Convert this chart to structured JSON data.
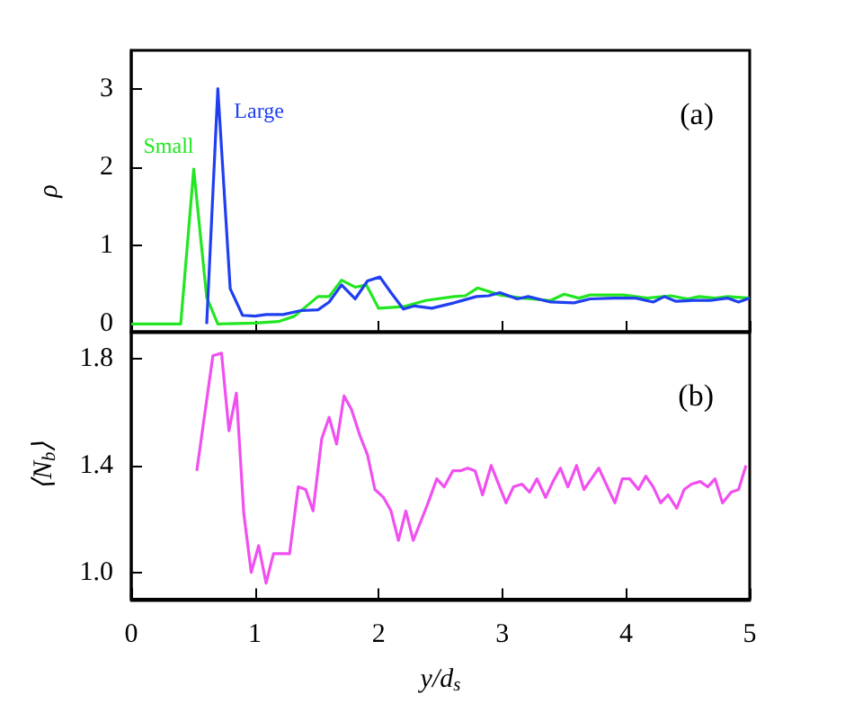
{
  "chart_data": [
    {
      "type": "line",
      "ylabel": "ρ",
      "annotations": [
        "(a)"
      ],
      "xlim": [
        0,
        5
      ],
      "xticks": [
        0,
        1,
        2,
        3,
        4,
        5
      ],
      "ylim": [
        -0.1,
        3.5
      ],
      "yticks": [
        0,
        1,
        2,
        3
      ],
      "tick_labels": "y",
      "grid": false,
      "legend": false,
      "series": [
        {
          "name": "Small",
          "color": "#22e622",
          "x": [
            0,
            0.4,
            0.505,
            0.61,
            0.7,
            1.0,
            1.19,
            1.32,
            1.51,
            1.6,
            1.7,
            1.81,
            1.9,
            2.0,
            2.2,
            2.38,
            2.61,
            2.7,
            2.8,
            2.98,
            3.16,
            3.39,
            3.5,
            3.62,
            3.71,
            3.98,
            4.17,
            4.36,
            4.5,
            4.59,
            4.72,
            4.82,
            5.0
          ],
          "values": [
            0,
            0,
            1.98,
            0.34,
            0,
            0.01,
            0.03,
            0.1,
            0.35,
            0.35,
            0.56,
            0.47,
            0.5,
            0.2,
            0.22,
            0.3,
            0.35,
            0.36,
            0.46,
            0.37,
            0.33,
            0.3,
            0.38,
            0.33,
            0.37,
            0.37,
            0.33,
            0.36,
            0.32,
            0.35,
            0.33,
            0.35,
            0.33
          ]
        },
        {
          "name": "Large",
          "color": "#1f3ff0",
          "x": [
            0.61,
            0.7,
            0.8,
            0.9,
            1.0,
            1.09,
            1.23,
            1.37,
            1.51,
            1.6,
            1.7,
            1.81,
            1.91,
            2.01,
            2.1,
            2.2,
            2.29,
            2.43,
            2.61,
            2.79,
            2.89,
            2.98,
            3.12,
            3.21,
            3.39,
            3.58,
            3.71,
            3.9,
            4.08,
            4.22,
            4.31,
            4.4,
            4.54,
            4.68,
            4.82,
            4.91,
            5.0
          ],
          "values": [
            0,
            3.01,
            0.45,
            0.11,
            0.1,
            0.12,
            0.12,
            0.17,
            0.18,
            0.28,
            0.5,
            0.32,
            0.55,
            0.6,
            0.4,
            0.19,
            0.23,
            0.2,
            0.27,
            0.35,
            0.36,
            0.4,
            0.32,
            0.35,
            0.28,
            0.27,
            0.32,
            0.33,
            0.33,
            0.28,
            0.35,
            0.29,
            0.3,
            0.3,
            0.33,
            0.28,
            0.33
          ]
        }
      ]
    },
    {
      "type": "line",
      "xlabel": "y/d$_{s}$",
      "ylabel": "⟨N$_{b}$⟩",
      "annotations": [
        "(b)"
      ],
      "xlim": [
        0,
        5
      ],
      "xticks": [
        0,
        1,
        2,
        3,
        4,
        5
      ],
      "ylim": [
        0.9,
        1.9
      ],
      "yticks": [
        {
          "value": 1,
          "label": "1.0"
        },
        1.4,
        1.8
      ],
      "grid": false,
      "legend": false,
      "series": [
        {
          "color": "#f050f0",
          "x": [
            0.53,
            0.66,
            0.73,
            0.79,
            0.85,
            0.91,
            0.97,
            1.03,
            1.09,
            1.15,
            1.22,
            1.28,
            1.35,
            1.41,
            1.47,
            1.54,
            1.6,
            1.66,
            1.72,
            1.78,
            1.85,
            1.91,
            1.97,
            2.04,
            2.1,
            2.16,
            2.22,
            2.28,
            2.34,
            2.4,
            2.47,
            2.53,
            2.6,
            2.66,
            2.72,
            2.78,
            2.84,
            2.91,
            2.97,
            3.03,
            3.09,
            3.16,
            3.22,
            3.28,
            3.35,
            3.41,
            3.47,
            3.53,
            3.6,
            3.66,
            3.72,
            3.78,
            3.84,
            3.91,
            3.97,
            4.03,
            4.1,
            4.16,
            4.22,
            4.28,
            4.34,
            4.41,
            4.47,
            4.53,
            4.6,
            4.66,
            4.72,
            4.78,
            4.85,
            4.91,
            4.97
          ],
          "values": [
            1.38,
            1.81,
            1.82,
            1.53,
            1.67,
            1.22,
            1.0,
            1.1,
            0.96,
            1.07,
            1.07,
            1.07,
            1.32,
            1.31,
            1.23,
            1.5,
            1.58,
            1.48,
            1.66,
            1.61,
            1.51,
            1.44,
            1.31,
            1.28,
            1.23,
            1.12,
            1.23,
            1.12,
            1.19,
            1.26,
            1.35,
            1.32,
            1.38,
            1.38,
            1.39,
            1.38,
            1.29,
            1.4,
            1.33,
            1.26,
            1.32,
            1.33,
            1.3,
            1.35,
            1.28,
            1.34,
            1.39,
            1.32,
            1.4,
            1.31,
            1.35,
            1.39,
            1.33,
            1.26,
            1.35,
            1.35,
            1.31,
            1.36,
            1.32,
            1.26,
            1.29,
            1.24,
            1.31,
            1.33,
            1.34,
            1.32,
            1.35,
            1.26,
            1.3,
            1.31,
            1.4
          ]
        }
      ]
    }
  ]
}
